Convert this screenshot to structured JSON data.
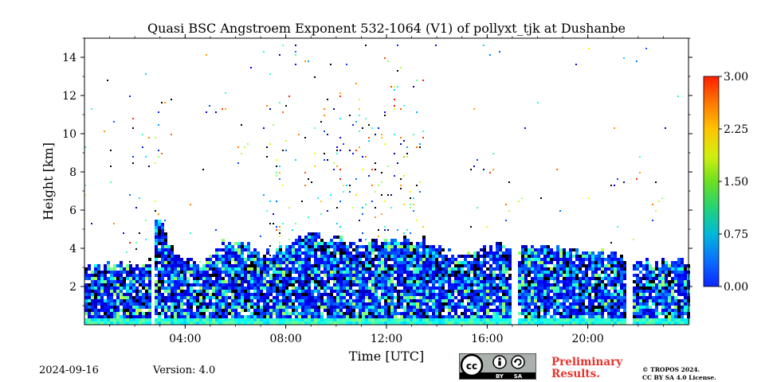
{
  "chart_data": {
    "type": "heatmap",
    "title": "Quasi BSC Angstroem Exponent 532-1064 (V1) of pollyxt_tjk at Dushanbe",
    "xlabel": "Time [UTC]",
    "ylabel": "Height [km]",
    "xlim_hours": [
      0,
      24
    ],
    "ylim_km": [
      0,
      15
    ],
    "x_ticks": [
      {
        "value": 4,
        "label": "04:00"
      },
      {
        "value": 8,
        "label": "08:00"
      },
      {
        "value": 12,
        "label": "12:00"
      },
      {
        "value": 16,
        "label": "16:00"
      },
      {
        "value": 20,
        "label": "20:00"
      }
    ],
    "y_ticks": [
      {
        "value": 2,
        "label": "2"
      },
      {
        "value": 4,
        "label": "4"
      },
      {
        "value": 6,
        "label": "6"
      },
      {
        "value": 8,
        "label": "8"
      },
      {
        "value": 10,
        "label": "10"
      },
      {
        "value": 12,
        "label": "12"
      },
      {
        "value": 14,
        "label": "14"
      }
    ],
    "colorbar": {
      "range": [
        0.0,
        3.0
      ],
      "ticks": [
        {
          "value": 0.0,
          "label": "0.00"
        },
        {
          "value": 0.75,
          "label": "0.75"
        },
        {
          "value": 1.5,
          "label": "1.50"
        },
        {
          "value": 2.25,
          "label": "2.25"
        },
        {
          "value": 3.0,
          "label": "3.00"
        }
      ]
    },
    "data_gaps_hours": [
      [
        2.55,
        2.72
      ],
      [
        16.95,
        17.12
      ],
      [
        21.5,
        21.7
      ]
    ],
    "layer_top_km": [
      [
        0.0,
        3.0
      ],
      [
        2.5,
        3.3
      ],
      [
        2.7,
        6.0
      ],
      [
        3.5,
        4.0
      ],
      [
        4.5,
        3.2
      ],
      [
        5.3,
        4.3
      ],
      [
        6.0,
        4.5
      ],
      [
        7.0,
        3.7
      ],
      [
        9.0,
        4.8
      ],
      [
        11.0,
        4.4
      ],
      [
        13.0,
        4.7
      ],
      [
        15.0,
        3.6
      ],
      [
        16.0,
        4.2
      ],
      [
        17.2,
        4.0
      ],
      [
        19.0,
        4.1
      ],
      [
        21.0,
        3.8
      ],
      [
        21.7,
        3.3
      ],
      [
        24.0,
        3.3
      ]
    ]
  },
  "footer": {
    "date": "2024-09-16",
    "version": "Version: 4.0",
    "preliminary_line1": "Preliminary",
    "preliminary_line2": "Results.",
    "license_line1": "© TROPOS 2024.",
    "license_line2": "CC BY SA 4.0 License.",
    "cc_by": "BY",
    "cc_sa": "SA"
  }
}
